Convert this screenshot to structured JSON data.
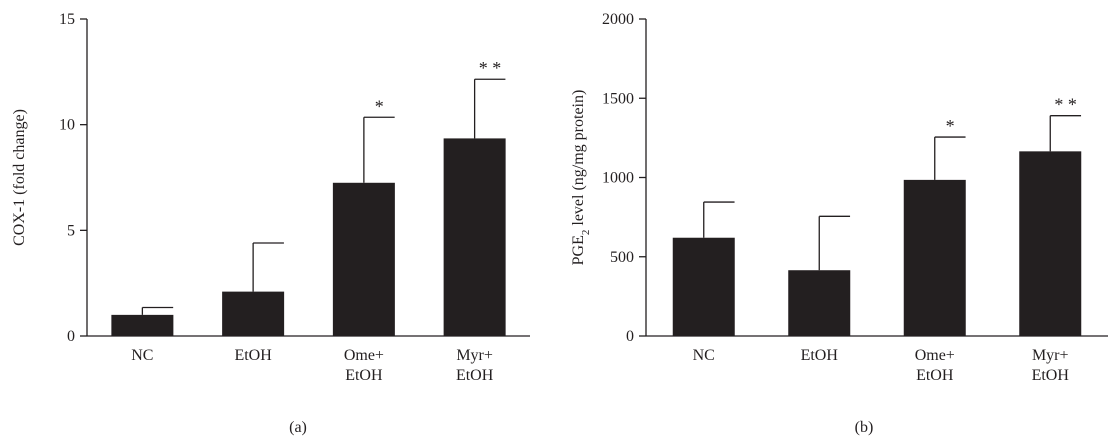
{
  "chart_data": [
    {
      "type": "bar",
      "panel_label": "(a)",
      "categories": [
        [
          "NC"
        ],
        [
          "EtOH"
        ],
        [
          "Ome+",
          "EtOH"
        ],
        [
          "Myr+",
          "EtOH"
        ]
      ],
      "values": [
        1.0,
        2.1,
        7.25,
        9.35
      ],
      "errors": [
        0.35,
        2.3,
        3.1,
        2.8
      ],
      "significance": [
        "",
        "",
        "*",
        "**"
      ],
      "ylabel": "COX-1 (fold change)",
      "ylim": [
        0,
        15
      ],
      "yticks": [
        0,
        5,
        10,
        15
      ],
      "grid": false,
      "bar_color": "#231f20"
    },
    {
      "type": "bar",
      "panel_label": "(b)",
      "categories": [
        [
          "NC"
        ],
        [
          "EtOH"
        ],
        [
          "Ome+",
          "EtOH"
        ],
        [
          "Myr+",
          "EtOH"
        ]
      ],
      "values": [
        620,
        415,
        985,
        1165
      ],
      "errors": [
        225,
        340,
        270,
        225
      ],
      "significance": [
        "",
        "",
        "*",
        "**"
      ],
      "ylabel": {
        "prefix": "PGE",
        "subscript": "2",
        "suffix": " level (ng/mg protein)"
      },
      "ylim": [
        0,
        2000
      ],
      "yticks": [
        0,
        500,
        1000,
        1500,
        2000
      ],
      "grid": false,
      "bar_color": "#231f20"
    }
  ]
}
